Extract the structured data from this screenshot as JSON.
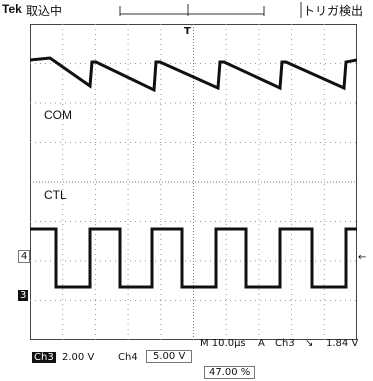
{
  "header": {
    "brand": "Tek",
    "status": "取込中",
    "trigger_status": "トリガ検出",
    "trigger_marker": "T"
  },
  "channels": {
    "com_label": "COM",
    "ctl_label": "CTL",
    "ch4_marker": "4",
    "ch3_marker": "3"
  },
  "readout": {
    "timebase": "M 10.0μs",
    "trigger_mode": "A",
    "trigger_source": "Ch3",
    "trigger_edge": "↘",
    "trigger_level": "1.84 V",
    "ch3_name": "Ch3",
    "ch3_scale": "2.00 V",
    "ch4_name": "Ch4",
    "ch4_scale": "5.00 V",
    "trigger_position": "47.00 %"
  },
  "colors": {
    "trace": "#111111",
    "grid": "#9a9a9a",
    "background": "#ffffff"
  }
}
